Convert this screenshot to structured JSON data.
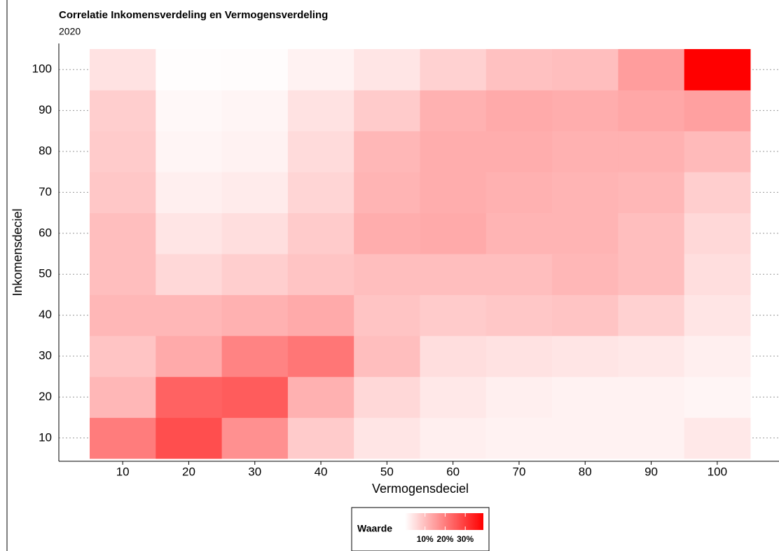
{
  "chart_data": {
    "type": "heatmap",
    "title": "Correlatie Inkomensverdeling en Vermogensverdeling",
    "subtitle": "2020",
    "x_label": "Vermogensdeciel",
    "y_label": "Inkomensdeciel",
    "x": [
      "10",
      "20",
      "30",
      "40",
      "50",
      "60",
      "70",
      "80",
      "90",
      "100"
    ],
    "y": [
      "10",
      "20",
      "30",
      "40",
      "50",
      "60",
      "70",
      "80",
      "90",
      "100"
    ],
    "values": [
      [
        20,
        27,
        17,
        8,
        4,
        2.5,
        2,
        2,
        2,
        3.5
      ],
      [
        11,
        24,
        25,
        12,
        6,
        3.5,
        2.5,
        2,
        2,
        1.5
      ],
      [
        9,
        13,
        19,
        21,
        10,
        5,
        4.5,
        4,
        3.5,
        2.5
      ],
      [
        11,
        11,
        12,
        13,
        9,
        8,
        8.5,
        9,
        7,
        4
      ],
      [
        10,
        6,
        7.5,
        9,
        10,
        10,
        10,
        11,
        10,
        5
      ],
      [
        10,
        4,
        5,
        8,
        12.5,
        13,
        11.5,
        11.5,
        10,
        6
      ],
      [
        8.5,
        2.5,
        3,
        6.5,
        11.5,
        12.5,
        12,
        11.5,
        11,
        7.5
      ],
      [
        8,
        1.5,
        2,
        5.5,
        11,
        12.5,
        12.5,
        12,
        12,
        10.5
      ],
      [
        7.5,
        1,
        1.5,
        4.5,
        8,
        12,
        13,
        12.5,
        13.5,
        14.5
      ],
      [
        4.5,
        0.3,
        0.5,
        2,
        4,
        7,
        9.5,
        10,
        15,
        39
      ]
    ],
    "colors": [
      "#ffffff",
      "#ff0000"
    ],
    "clim": [
      0,
      39
    ],
    "legend": {
      "title": "Waarde",
      "ticks": [
        {
          "value": 10,
          "label": "10%"
        },
        {
          "value": 20,
          "label": "20%"
        },
        {
          "value": 30,
          "label": "30%"
        }
      ]
    },
    "grid": true
  }
}
